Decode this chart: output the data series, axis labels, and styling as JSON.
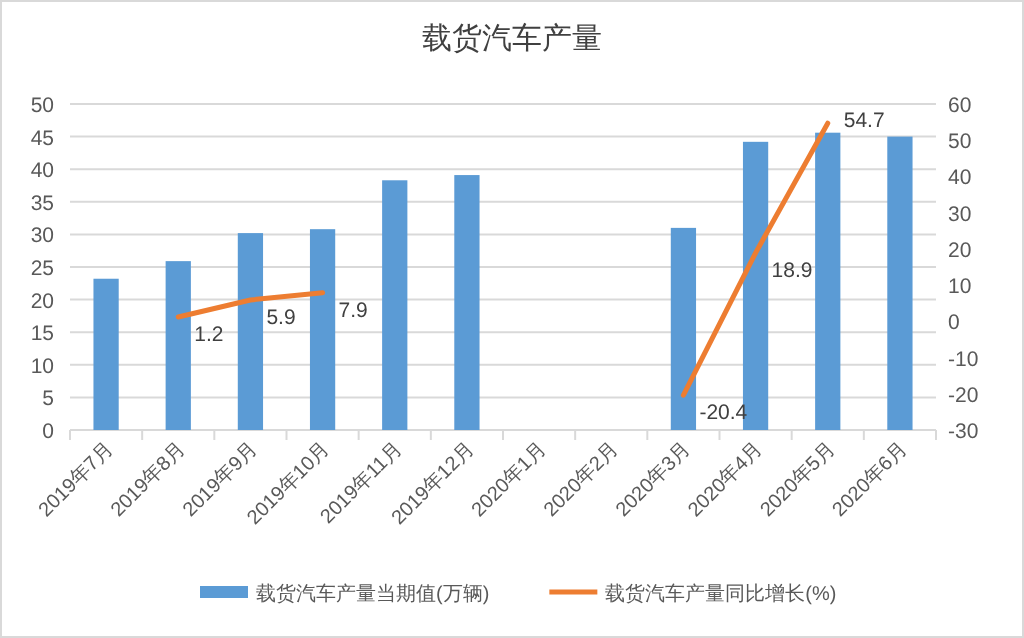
{
  "chart_data": {
    "type": "bar",
    "title": "载货汽车产量",
    "categories": [
      "2019年7月",
      "2019年8月",
      "2019年9月",
      "2019年10月",
      "2019年11月",
      "2019年12月",
      "2020年1月",
      "2020年2月",
      "2020年3月",
      "2020年4月",
      "2020年5月",
      "2020年6月"
    ],
    "series": [
      {
        "name": "载货汽车产量当期值(万辆)",
        "color": "#5b9bd5",
        "values": [
          23.2,
          25.9,
          30.2,
          30.8,
          38.3,
          39.1,
          null,
          null,
          31.0,
          44.2,
          45.6,
          45.0
        ]
      },
      {
        "name": "载货汽车产量同比增长(%)",
        "type": "line",
        "axis": "y2",
        "color": "#ed7d31",
        "values": [
          null,
          1.2,
          5.9,
          7.9,
          null,
          null,
          null,
          null,
          -20.4,
          18.9,
          54.7,
          null
        ],
        "value_labels": [
          null,
          "1.2",
          "5.9",
          "7.9",
          null,
          null,
          null,
          null,
          "-20.4",
          "18.9",
          "54.7",
          null
        ]
      }
    ],
    "ylim": [
      0,
      50
    ],
    "yticks": [
      0,
      5,
      10,
      15,
      20,
      25,
      30,
      35,
      40,
      45,
      50
    ],
    "y2lim": [
      -30,
      60
    ],
    "y2ticks": [
      -30,
      -20,
      -10,
      0,
      10,
      20,
      30,
      40,
      50,
      60
    ],
    "grid": "y",
    "legend": "bottom"
  }
}
